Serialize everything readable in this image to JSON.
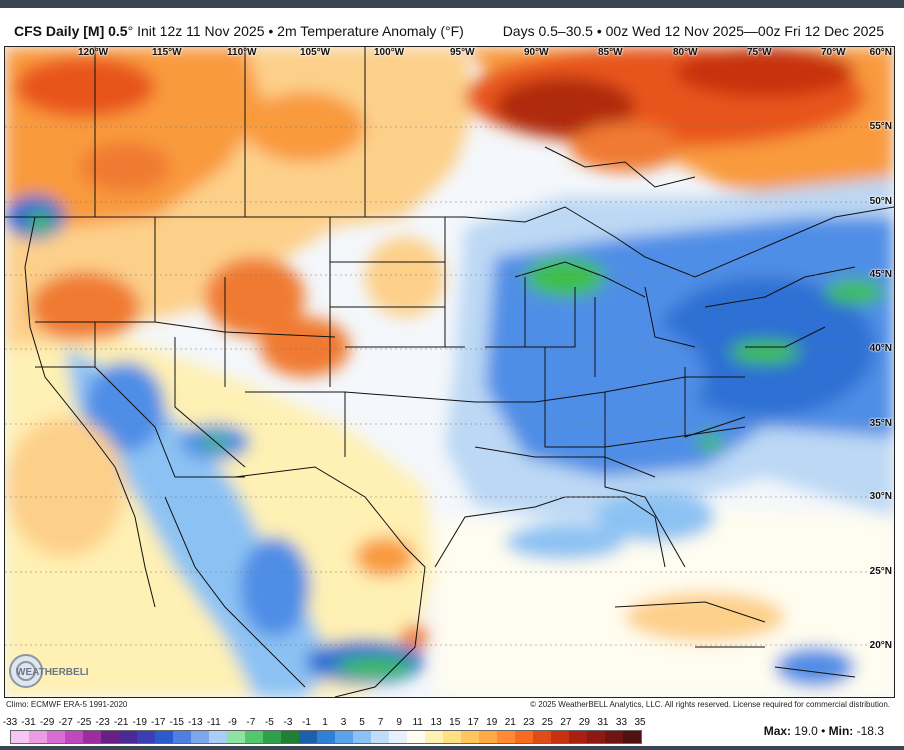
{
  "header": {
    "model": "CFS Daily [M] 0.5",
    "degree": "°",
    "init": "Init 12z 11 Nov 2025",
    "bullet": "•",
    "product": "2m Temperature Anomaly (°F)",
    "valid": "Days 0.5–30.5 • 00z Wed 12 Nov 2025—00z Fri 12 Dec 2025"
  },
  "map": {
    "longitude_labels": [
      "120°W",
      "115°W",
      "110°W",
      "105°W",
      "100°W",
      "95°W",
      "90°W",
      "85°W",
      "80°W",
      "75°W",
      "70°W"
    ],
    "latitude_labels": [
      "60°N",
      "55°N",
      "50°N",
      "45°N",
      "40°N",
      "35°N",
      "30°N",
      "25°N",
      "20°N"
    ]
  },
  "credits": {
    "climo": "Climo: ECMWF ERA-5 1991-2020",
    "copyright": "© 2025 WeatherBELL Analytics, LLC. All rights reserved. License required for commercial distribution.",
    "logo_text": "WEATHERBELL"
  },
  "legend": {
    "ticks": [
      "-33",
      "-31",
      "-29",
      "-27",
      "-25",
      "-23",
      "-21",
      "-19",
      "-17",
      "-15",
      "-13",
      "-11",
      "-9",
      "-7",
      "-5",
      "-3",
      "-1",
      "1",
      "3",
      "5",
      "7",
      "9",
      "11",
      "13",
      "15",
      "17",
      "19",
      "21",
      "23",
      "25",
      "27",
      "29",
      "31",
      "33",
      "35"
    ],
    "colors": [
      "#f6c7f4",
      "#ec9be6",
      "#d86ed3",
      "#c147bf",
      "#9b2da0",
      "#6a1f86",
      "#4b2a95",
      "#3b3fb3",
      "#2a5acc",
      "#4f7fe0",
      "#7ca7ef",
      "#a9cdf7",
      "#8fe3a0",
      "#54c66b",
      "#2fa04b",
      "#1f7f35",
      "#1d5fa9",
      "#2e7fd6",
      "#5aa3ea",
      "#8cc2f3",
      "#bfdcf8",
      "#e8f1fb",
      "#fffdf0",
      "#fff0b3",
      "#ffe083",
      "#ffc65e",
      "#ffa947",
      "#ff8a33",
      "#f66a22",
      "#e24b17",
      "#c8310f",
      "#a92010",
      "#8c1a12",
      "#6f1514",
      "#521010"
    ],
    "max_label": "Max:",
    "max_value": "19.0",
    "min_label": "Min:",
    "min_value": "-18.3",
    "separator": "•"
  },
  "colors": {
    "warm_dark": "#8a1a0c",
    "warm": "#e8541c",
    "warm_mid": "#f99a3e",
    "warm_light": "#fdd08a",
    "neutral": "#f4f7fb",
    "cool_light": "#bcd8f4",
    "cool": "#4f8ee6",
    "cool_dark": "#1d5bc4",
    "green": "#3fbf4a"
  }
}
